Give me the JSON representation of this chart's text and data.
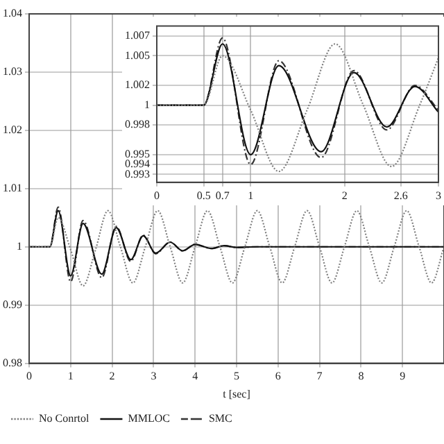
{
  "chart_data": [
    {
      "type": "line",
      "xlabel": "t [sec]",
      "xlim": [
        0,
        10
      ],
      "xticks": [
        0,
        1,
        2,
        3,
        4,
        5,
        6,
        7,
        8,
        9
      ],
      "ylim": [
        0.98,
        1.04
      ],
      "yticks": [
        0.98,
        0.99,
        1,
        1.01,
        1.02,
        1.03,
        1.04
      ],
      "grid": true,
      "legend": "bottom left",
      "marker": "none",
      "series": [
        {
          "name": "No Conrtol",
          "color": "#808080",
          "line_style": "dotted",
          "x": [
            0,
            0.5,
            0.7,
            1.0,
            1.3,
            1.6,
            1.9,
            2.2,
            2.5,
            2.8,
            3.1,
            3.4,
            3.7,
            4.0,
            4.3,
            4.6,
            4.9,
            5.2,
            5.5,
            5.8,
            6.1,
            6.4,
            6.7,
            7.0,
            7.3,
            7.6,
            7.9,
            8.2,
            8.5,
            8.8,
            9.1,
            9.4,
            9.7,
            10
          ],
          "values": [
            1,
            1,
            1.005,
            0.9995,
            0.9933,
            0.9995,
            1.0062,
            1,
            0.9938,
            1,
            1.0062,
            1,
            0.9938,
            1,
            1.0062,
            1,
            0.9938,
            1,
            1.0062,
            1,
            0.9938,
            1,
            1.0062,
            1,
            0.9938,
            1,
            1.0062,
            1,
            0.9938,
            1,
            1.0062,
            1,
            0.9938,
            1
          ]
        },
        {
          "name": "MMLOC",
          "color": "#111111",
          "line_style": "solid",
          "x": [
            0,
            0.5,
            0.7,
            1.0,
            1.3,
            1.75,
            2.1,
            2.45,
            2.75,
            3.05,
            3.4,
            3.7,
            4.0,
            4.4,
            4.7,
            5.0,
            5.5,
            10
          ],
          "values": [
            1,
            1,
            1.0062,
            0.995,
            1.004,
            0.9953,
            1.0033,
            0.9978,
            1.0019,
            0.9989,
            1.0008,
            0.9993,
            1.0004,
            0.9997,
            1.0002,
            0.9999,
            1,
            1
          ]
        },
        {
          "name": "SMC",
          "color": "#333333",
          "line_style": "dashdot",
          "x": [
            0,
            0.5,
            0.7,
            1.0,
            1.3,
            1.75,
            2.1,
            2.45,
            2.75,
            3.05,
            3.4,
            3.7,
            4.0,
            4.4,
            4.7,
            5.0,
            5.5,
            10
          ],
          "values": [
            1,
            1,
            1.0068,
            0.994,
            1.0045,
            0.9947,
            1.0035,
            0.9975,
            1.002,
            0.9988,
            1.0008,
            0.9993,
            1.0004,
            0.9997,
            1.0002,
            0.9999,
            1,
            1
          ]
        }
      ]
    },
    {
      "type": "line",
      "xlim": [
        0,
        3
      ],
      "xticks": [
        0,
        0.5,
        0.7,
        1,
        2,
        2.6,
        3
      ],
      "ylim": [
        0.9922,
        1.008
      ],
      "yticks": [
        0.993,
        0.994,
        0.995,
        0.998,
        1,
        1.002,
        1.005,
        1.007
      ],
      "grid": true,
      "marker": "none",
      "series": [
        {
          "color": "#808080",
          "line_style": "dotted",
          "x": [
            0,
            0.5,
            0.7,
            1.0,
            1.3,
            1.6,
            1.9,
            2.2,
            2.5,
            2.8,
            3.0
          ],
          "values": [
            1,
            1,
            1.005,
            0.9995,
            0.9933,
            0.9995,
            1.0062,
            1,
            0.9938,
            1,
            1.0048
          ]
        },
        {
          "color": "#111111",
          "line_style": "solid",
          "x": [
            0,
            0.5,
            0.7,
            1.0,
            1.3,
            1.75,
            2.1,
            2.45,
            2.75,
            3.0
          ],
          "values": [
            1,
            1,
            1.0062,
            0.995,
            1.004,
            0.9953,
            1.0033,
            0.9978,
            1.0019,
            0.9993
          ]
        },
        {
          "color": "#333333",
          "line_style": "dashdot",
          "x": [
            0,
            0.5,
            0.7,
            1.0,
            1.3,
            1.75,
            2.1,
            2.45,
            2.75,
            3.0
          ],
          "values": [
            1,
            1,
            1.0068,
            0.994,
            1.0045,
            0.9947,
            1.0035,
            0.9975,
            1.002,
            0.9995
          ]
        }
      ]
    }
  ]
}
